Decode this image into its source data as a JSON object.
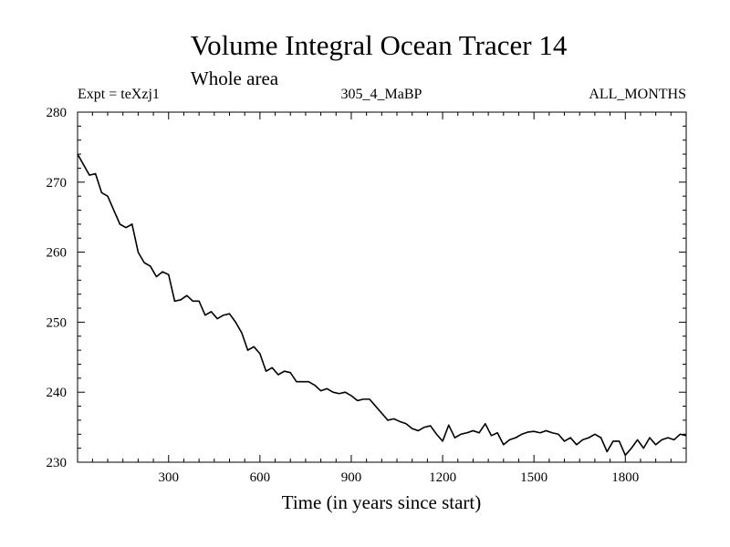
{
  "chart_data": {
    "type": "line",
    "title": "Volume Integral Ocean Tracer 14",
    "subtitle": "Whole area",
    "annotations": {
      "left": "Expt = teXzj1",
      "center": "305_4_MaBP",
      "right": "ALL_MONTHS"
    },
    "xlabel": "Time (in years since start)",
    "ylabel": "",
    "xlim": [
      1,
      2000
    ],
    "ylim": [
      230,
      280
    ],
    "xticks": [
      300,
      600,
      900,
      1200,
      1500,
      1800
    ],
    "xtick_labels": [
      "300",
      "600",
      "900",
      "1200",
      "1500",
      "1800"
    ],
    "yticks": [
      230,
      240,
      250,
      260,
      270,
      280
    ],
    "ytick_labels": [
      "230",
      "240",
      "250",
      "260",
      "270",
      "280"
    ],
    "grid": false,
    "legend": "none",
    "series": [
      {
        "name": "Ocean Tracer 14",
        "color": "#000000",
        "x": [
          1,
          40,
          60,
          80,
          100,
          120,
          140,
          160,
          180,
          200,
          220,
          240,
          260,
          280,
          300,
          320,
          340,
          360,
          380,
          400,
          420,
          440,
          460,
          480,
          500,
          520,
          540,
          560,
          580,
          600,
          620,
          640,
          660,
          680,
          700,
          720,
          740,
          760,
          780,
          800,
          820,
          840,
          860,
          880,
          900,
          920,
          940,
          960,
          980,
          1000,
          1020,
          1040,
          1060,
          1080,
          1100,
          1120,
          1140,
          1160,
          1180,
          1200,
          1220,
          1240,
          1260,
          1280,
          1300,
          1320,
          1340,
          1360,
          1380,
          1400,
          1420,
          1440,
          1460,
          1480,
          1500,
          1520,
          1540,
          1560,
          1580,
          1600,
          1620,
          1640,
          1660,
          1680,
          1700,
          1720,
          1740,
          1760,
          1780,
          1800,
          1820,
          1840,
          1860,
          1880,
          1900,
          1920,
          1940,
          1960,
          1980,
          2000
        ],
        "values": [
          274.0,
          271.0,
          271.2,
          268.5,
          268.0,
          266.0,
          264.0,
          263.5,
          264.0,
          260.0,
          258.5,
          258.0,
          256.5,
          257.2,
          256.8,
          253.0,
          253.2,
          253.8,
          253.0,
          253.0,
          251.0,
          251.5,
          250.5,
          251.0,
          251.2,
          250.0,
          248.5,
          246.0,
          246.5,
          245.5,
          243.0,
          243.5,
          242.5,
          243.0,
          242.8,
          241.5,
          241.5,
          241.5,
          241.0,
          240.2,
          240.5,
          240.0,
          239.8,
          240.0,
          239.5,
          238.8,
          239.0,
          239.0,
          238.0,
          237.0,
          236.0,
          236.2,
          235.8,
          235.5,
          234.8,
          234.5,
          235.0,
          235.2,
          234.0,
          233.0,
          235.3,
          233.5,
          234.0,
          234.2,
          234.5,
          234.2,
          235.5,
          233.8,
          234.2,
          232.5,
          233.2,
          233.5,
          234.0,
          234.3,
          234.4,
          234.2,
          234.5,
          234.2,
          234.0,
          233.0,
          233.5,
          232.5,
          233.2,
          233.5,
          234.0,
          233.5,
          231.5,
          233.0,
          233.0,
          231.0,
          232.0,
          233.2,
          232.0,
          233.5,
          232.5,
          233.2,
          233.5,
          233.2,
          234.0,
          233.8
        ]
      }
    ]
  }
}
